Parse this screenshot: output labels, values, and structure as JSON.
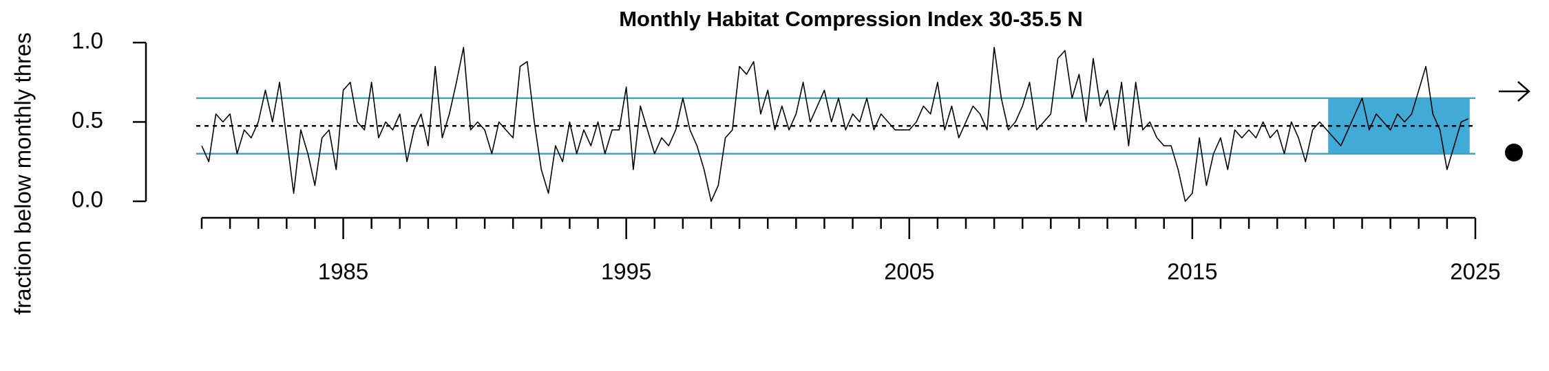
{
  "chart_data": {
    "type": "line",
    "title": "Monthly Habitat Compression Index 30-35.5 N",
    "ylabel": "fraction below monthly thres",
    "x": [
      1980,
      1980.25,
      1980.5,
      1980.75,
      1981,
      1981.25,
      1981.5,
      1981.75,
      1982,
      1982.25,
      1982.5,
      1982.75,
      1983,
      1983.25,
      1983.5,
      1983.75,
      1984,
      1984.25,
      1984.5,
      1984.75,
      1985,
      1985.25,
      1985.5,
      1985.75,
      1986,
      1986.25,
      1986.5,
      1986.75,
      1987,
      1987.25,
      1987.5,
      1987.75,
      1988,
      1988.25,
      1988.5,
      1988.75,
      1989,
      1989.25,
      1989.5,
      1989.75,
      1990,
      1990.25,
      1990.5,
      1990.75,
      1991,
      1991.25,
      1991.5,
      1991.75,
      1992,
      1992.25,
      1992.5,
      1992.75,
      1993,
      1993.25,
      1993.5,
      1993.75,
      1994,
      1994.25,
      1994.5,
      1994.75,
      1995,
      1995.25,
      1995.5,
      1995.75,
      1996,
      1996.25,
      1996.5,
      1996.75,
      1997,
      1997.25,
      1997.5,
      1997.75,
      1998,
      1998.25,
      1998.5,
      1998.75,
      1999,
      1999.25,
      1999.5,
      1999.75,
      2000,
      2000.25,
      2000.5,
      2000.75,
      2001,
      2001.25,
      2001.5,
      2001.75,
      2002,
      2002.25,
      2002.5,
      2002.75,
      2003,
      2003.25,
      2003.5,
      2003.75,
      2004,
      2004.25,
      2004.5,
      2004.75,
      2005,
      2005.25,
      2005.5,
      2005.75,
      2006,
      2006.25,
      2006.5,
      2006.75,
      2007,
      2007.25,
      2007.5,
      2007.75,
      2008,
      2008.25,
      2008.5,
      2008.75,
      2009,
      2009.25,
      2009.5,
      2009.75,
      2010,
      2010.25,
      2010.5,
      2010.75,
      2011,
      2011.25,
      2011.5,
      2011.75,
      2012,
      2012.25,
      2012.5,
      2012.75,
      2013,
      2013.25,
      2013.5,
      2013.75,
      2014,
      2014.25,
      2014.5,
      2014.75,
      2015,
      2015.25,
      2015.5,
      2015.75,
      2016,
      2016.25,
      2016.5,
      2016.75,
      2017,
      2017.25,
      2017.5,
      2017.75,
      2018,
      2018.25,
      2018.5,
      2018.75,
      2019,
      2019.25,
      2019.5,
      2019.75,
      2020,
      2020.25,
      2020.5,
      2020.75,
      2021,
      2021.25,
      2021.5,
      2021.75,
      2022,
      2022.25,
      2022.5,
      2022.75,
      2023,
      2023.25,
      2023.5,
      2023.75,
      2024,
      2024.25,
      2024.5,
      2024.75
    ],
    "values": [
      0.35,
      0.25,
      0.55,
      0.5,
      0.55,
      0.3,
      0.45,
      0.4,
      0.5,
      0.7,
      0.5,
      0.75,
      0.4,
      0.05,
      0.45,
      0.3,
      0.1,
      0.4,
      0.45,
      0.2,
      0.7,
      0.75,
      0.5,
      0.45,
      0.75,
      0.4,
      0.5,
      0.45,
      0.55,
      0.25,
      0.45,
      0.55,
      0.35,
      0.85,
      0.4,
      0.55,
      0.75,
      0.97,
      0.45,
      0.5,
      0.45,
      0.3,
      0.5,
      0.45,
      0.4,
      0.85,
      0.88,
      0.5,
      0.2,
      0.05,
      0.35,
      0.25,
      0.5,
      0.3,
      0.45,
      0.35,
      0.5,
      0.3,
      0.45,
      0.45,
      0.72,
      0.2,
      0.6,
      0.45,
      0.3,
      0.4,
      0.35,
      0.45,
      0.65,
      0.45,
      0.35,
      0.2,
      0.0,
      0.1,
      0.4,
      0.45,
      0.85,
      0.8,
      0.88,
      0.55,
      0.7,
      0.45,
      0.6,
      0.45,
      0.55,
      0.75,
      0.5,
      0.6,
      0.7,
      0.5,
      0.65,
      0.45,
      0.55,
      0.5,
      0.65,
      0.45,
      0.55,
      0.5,
      0.45,
      0.45,
      0.45,
      0.5,
      0.6,
      0.55,
      0.75,
      0.45,
      0.6,
      0.4,
      0.5,
      0.6,
      0.55,
      0.45,
      0.97,
      0.65,
      0.45,
      0.5,
      0.6,
      0.75,
      0.45,
      0.5,
      0.55,
      0.9,
      0.95,
      0.65,
      0.8,
      0.5,
      0.9,
      0.6,
      0.7,
      0.45,
      0.75,
      0.35,
      0.75,
      0.45,
      0.5,
      0.4,
      0.35,
      0.35,
      0.2,
      0.0,
      0.05,
      0.4,
      0.1,
      0.3,
      0.4,
      0.2,
      0.45,
      0.4,
      0.45,
      0.4,
      0.5,
      0.4,
      0.45,
      0.3,
      0.5,
      0.4,
      0.25,
      0.45,
      0.5,
      0.45,
      0.4,
      0.35,
      0.45,
      0.55,
      0.65,
      0.45,
      0.55,
      0.5,
      0.45,
      0.55,
      0.5,
      0.55,
      0.7,
      0.85,
      0.55,
      0.45,
      0.2,
      0.35,
      0.5,
      0.52
    ],
    "color": "#000000",
    "ylim": [
      0,
      1
    ],
    "yticks": [
      {
        "value": 0,
        "label": "0.0"
      },
      {
        "value": 0.5,
        "label": "0.5"
      },
      {
        "value": 1,
        "label": "1.0"
      }
    ],
    "xlim": [
      1980,
      2025
    ],
    "xticks": [
      1985,
      1995,
      2005,
      2015,
      2025
    ],
    "xminorticks": [
      1980,
      1981,
      1982,
      1983,
      1984,
      1986,
      1987,
      1988,
      1989,
      1990,
      1991,
      1992,
      1993,
      1994,
      1996,
      1997,
      1998,
      1999,
      2000,
      2001,
      2002,
      2003,
      2004,
      2006,
      2007,
      2008,
      2009,
      2010,
      2011,
      2012,
      2013,
      2014,
      2016,
      2017,
      2018,
      2019,
      2020,
      2021,
      2022,
      2023,
      2024
    ],
    "hlines": [
      {
        "value": 0.65,
        "color": "#3ba6c4",
        "style": "solid"
      },
      {
        "value": 0.3,
        "color": "#3ba6c4",
        "style": "solid"
      },
      {
        "value": 0.475,
        "color": "#000000",
        "style": "dashed"
      }
    ],
    "highlight": {
      "xlim": [
        2019.8,
        2024.8
      ],
      "color": "#41aad6"
    }
  }
}
